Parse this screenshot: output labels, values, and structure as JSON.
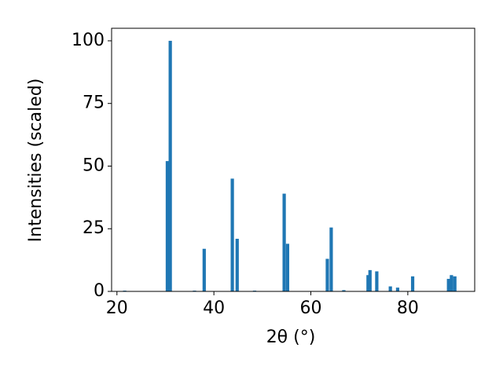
{
  "chart_data": {
    "type": "bar",
    "x": [
      21.6,
      30.4,
      31.0,
      36.0,
      38.0,
      43.8,
      44.8,
      48.4,
      54.5,
      55.2,
      63.4,
      64.2,
      66.8,
      71.8,
      72.2,
      73.6,
      76.4,
      77.9,
      81.0,
      88.4,
      89.0,
      89.7
    ],
    "values": [
      0.3,
      52,
      100,
      0.3,
      17,
      45,
      21,
      0.3,
      39,
      19,
      13,
      25.5,
      0.5,
      6.5,
      8.5,
      8,
      2,
      1.5,
      6,
      5,
      6.5,
      6
    ],
    "color": "#1f77b4",
    "xlabel": "2θ (°)",
    "ylabel": "Intensities (scaled)",
    "xlim": [
      18.9,
      93.8
    ],
    "ylim": [
      0,
      105
    ],
    "xticks": [
      20,
      40,
      60,
      80
    ],
    "yticks": [
      0,
      25,
      50,
      75,
      100
    ]
  }
}
